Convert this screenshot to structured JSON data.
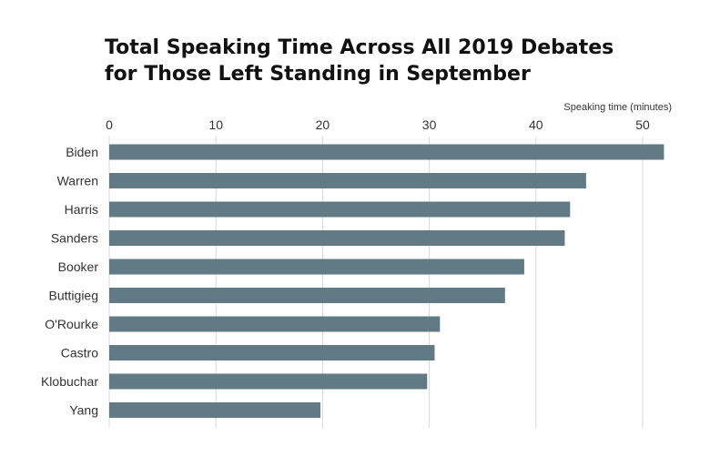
{
  "chart_data": {
    "type": "bar",
    "orientation": "horizontal",
    "title_lines": [
      "Total Speaking Time Across All 2019 Debates",
      "for Those Left Standing in September"
    ],
    "xlabel": "Speaking time (minutes)",
    "ylabel": "",
    "xlim": [
      0,
      52
    ],
    "xticks": [
      0,
      10,
      20,
      30,
      40,
      50
    ],
    "grid": true,
    "categories": [
      "Biden",
      "Warren",
      "Harris",
      "Sanders",
      "Booker",
      "Buttigieg",
      "O'Rourke",
      "Castro",
      "Klobuchar",
      "Yang"
    ],
    "values": [
      52.0,
      44.7,
      43.2,
      42.7,
      38.9,
      37.1,
      31.0,
      30.5,
      29.8,
      19.8
    ],
    "bar_color": "#627a84",
    "grid_color": "#d9d9d9"
  }
}
